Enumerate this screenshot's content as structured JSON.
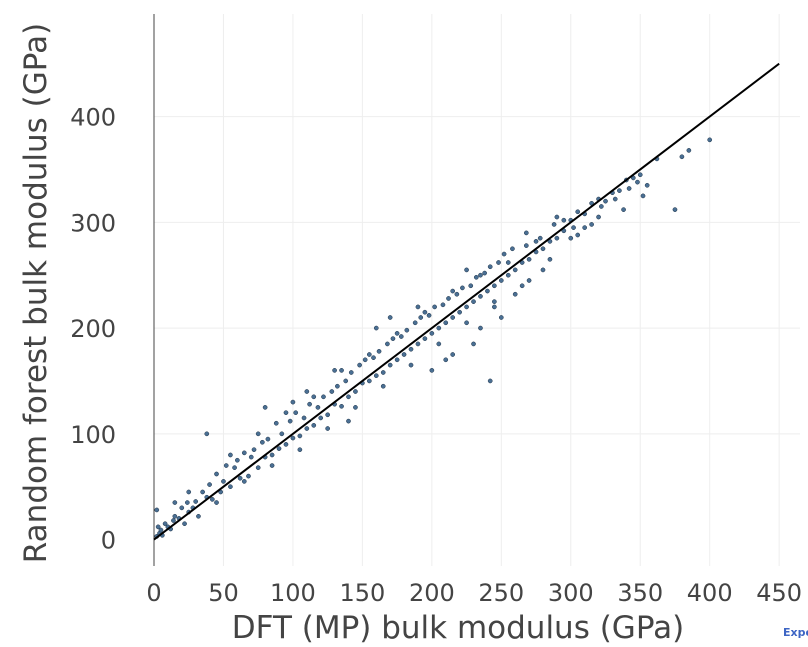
{
  "chart_data": {
    "type": "scatter",
    "title": "",
    "xlabel": "DFT (MP) bulk modulus (GPa)",
    "ylabel": "Random forest bulk modulus (GPa)",
    "xlim": [
      0,
      465
    ],
    "ylim": [
      -25,
      497
    ],
    "x_ticks": [
      0,
      50,
      100,
      150,
      200,
      250,
      300,
      350,
      400,
      450
    ],
    "y_ticks": [
      0,
      100,
      200,
      300,
      400
    ],
    "grid": true,
    "legend": "none",
    "marker_color": "#4a6f93",
    "marker_edge_color": "#1f3347",
    "reference_line": {
      "name": "",
      "x": [
        0,
        450
      ],
      "y": [
        0,
        450
      ],
      "color": "#000000"
    },
    "series": [
      {
        "name": "",
        "points": [
          [
            2,
            3
          ],
          [
            4,
            6
          ],
          [
            5,
            9
          ],
          [
            6,
            4
          ],
          [
            3,
            12
          ],
          [
            2,
            28
          ],
          [
            8,
            15
          ],
          [
            10,
            12
          ],
          [
            12,
            10
          ],
          [
            14,
            18
          ],
          [
            15,
            22
          ],
          [
            18,
            20
          ],
          [
            20,
            30
          ],
          [
            22,
            15
          ],
          [
            24,
            35
          ],
          [
            25,
            26
          ],
          [
            28,
            30
          ],
          [
            30,
            36
          ],
          [
            32,
            22
          ],
          [
            35,
            45
          ],
          [
            38,
            40
          ],
          [
            40,
            52
          ],
          [
            42,
            38
          ],
          [
            45,
            62
          ],
          [
            48,
            45
          ],
          [
            50,
            55
          ],
          [
            52,
            70
          ],
          [
            55,
            50
          ],
          [
            58,
            68
          ],
          [
            60,
            75
          ],
          [
            62,
            58
          ],
          [
            65,
            82
          ],
          [
            68,
            60
          ],
          [
            70,
            78
          ],
          [
            72,
            85
          ],
          [
            75,
            68
          ],
          [
            78,
            92
          ],
          [
            80,
            78
          ],
          [
            82,
            95
          ],
          [
            85,
            80
          ],
          [
            88,
            110
          ],
          [
            90,
            86
          ],
          [
            92,
            100
          ],
          [
            95,
            90
          ],
          [
            98,
            112
          ],
          [
            100,
            96
          ],
          [
            102,
            120
          ],
          [
            105,
            98
          ],
          [
            108,
            115
          ],
          [
            110,
            105
          ],
          [
            112,
            128
          ],
          [
            115,
            108
          ],
          [
            118,
            125
          ],
          [
            120,
            115
          ],
          [
            122,
            135
          ],
          [
            125,
            118
          ],
          [
            128,
            140
          ],
          [
            130,
            128
          ],
          [
            132,
            145
          ],
          [
            135,
            126
          ],
          [
            138,
            150
          ],
          [
            140,
            135
          ],
          [
            142,
            158
          ],
          [
            145,
            140
          ],
          [
            148,
            165
          ],
          [
            150,
            148
          ],
          [
            152,
            170
          ],
          [
            155,
            150
          ],
          [
            158,
            172
          ],
          [
            160,
            155
          ],
          [
            162,
            178
          ],
          [
            165,
            158
          ],
          [
            168,
            185
          ],
          [
            170,
            165
          ],
          [
            172,
            190
          ],
          [
            175,
            170
          ],
          [
            178,
            192
          ],
          [
            180,
            175
          ],
          [
            182,
            198
          ],
          [
            185,
            180
          ],
          [
            188,
            205
          ],
          [
            190,
            185
          ],
          [
            192,
            210
          ],
          [
            195,
            190
          ],
          [
            198,
            212
          ],
          [
            200,
            195
          ],
          [
            202,
            220
          ],
          [
            205,
            200
          ],
          [
            208,
            222
          ],
          [
            210,
            205
          ],
          [
            212,
            228
          ],
          [
            215,
            210
          ],
          [
            218,
            232
          ],
          [
            220,
            215
          ],
          [
            222,
            238
          ],
          [
            225,
            220
          ],
          [
            228,
            240
          ],
          [
            230,
            225
          ],
          [
            232,
            248
          ],
          [
            235,
            230
          ],
          [
            238,
            252
          ],
          [
            240,
            235
          ],
          [
            242,
            258
          ],
          [
            245,
            240
          ],
          [
            248,
            262
          ],
          [
            250,
            245
          ],
          [
            252,
            270
          ],
          [
            255,
            250
          ],
          [
            258,
            275
          ],
          [
            260,
            255
          ],
          [
            265,
            262
          ],
          [
            268,
            278
          ],
          [
            270,
            265
          ],
          [
            275,
            272
          ],
          [
            278,
            285
          ],
          [
            280,
            275
          ],
          [
            285,
            282
          ],
          [
            288,
            298
          ],
          [
            290,
            285
          ],
          [
            295,
            292
          ],
          [
            300,
            302
          ],
          [
            302,
            295
          ],
          [
            305,
            310
          ],
          [
            310,
            308
          ],
          [
            315,
            318
          ],
          [
            320,
            322
          ],
          [
            325,
            320
          ],
          [
            330,
            328
          ],
          [
            335,
            330
          ],
          [
            340,
            340
          ],
          [
            345,
            342
          ],
          [
            350,
            345
          ],
          [
            355,
            335
          ],
          [
            362,
            360
          ],
          [
            375,
            312
          ],
          [
            380,
            362
          ],
          [
            385,
            368
          ],
          [
            400,
            378
          ],
          [
            242,
            150
          ],
          [
            38,
            100
          ],
          [
            80,
            125
          ],
          [
            100,
            130
          ],
          [
            110,
            140
          ],
          [
            140,
            112
          ],
          [
            170,
            210
          ],
          [
            200,
            160
          ],
          [
            210,
            170
          ],
          [
            230,
            185
          ],
          [
            225,
            255
          ],
          [
            260,
            232
          ],
          [
            270,
            245
          ],
          [
            280,
            255
          ],
          [
            250,
            210
          ],
          [
            235,
            200
          ],
          [
            160,
            200
          ],
          [
            130,
            160
          ],
          [
            190,
            220
          ],
          [
            215,
            175
          ],
          [
            245,
            220
          ],
          [
            268,
            290
          ],
          [
            25,
            45
          ],
          [
            15,
            35
          ],
          [
            45,
            35
          ],
          [
            55,
            80
          ],
          [
            65,
            55
          ],
          [
            75,
            100
          ],
          [
            85,
            70
          ],
          [
            95,
            120
          ],
          [
            105,
            85
          ],
          [
            115,
            135
          ],
          [
            125,
            105
          ],
          [
            135,
            160
          ],
          [
            145,
            125
          ],
          [
            155,
            175
          ],
          [
            165,
            145
          ],
          [
            175,
            195
          ],
          [
            185,
            165
          ],
          [
            195,
            215
          ],
          [
            205,
            185
          ],
          [
            215,
            235
          ],
          [
            225,
            205
          ],
          [
            235,
            250
          ],
          [
            245,
            225
          ],
          [
            255,
            262
          ],
          [
            265,
            240
          ],
          [
            275,
            282
          ],
          [
            285,
            265
          ],
          [
            295,
            302
          ],
          [
            305,
            288
          ],
          [
            315,
            298
          ],
          [
            322,
            315
          ],
          [
            332,
            322
          ],
          [
            338,
            312
          ],
          [
            342,
            332
          ],
          [
            348,
            338
          ],
          [
            352,
            325
          ],
          [
            320,
            305
          ],
          [
            310,
            295
          ],
          [
            290,
            305
          ],
          [
            300,
            285
          ]
        ]
      }
    ]
  },
  "export": {
    "label": "Export"
  }
}
